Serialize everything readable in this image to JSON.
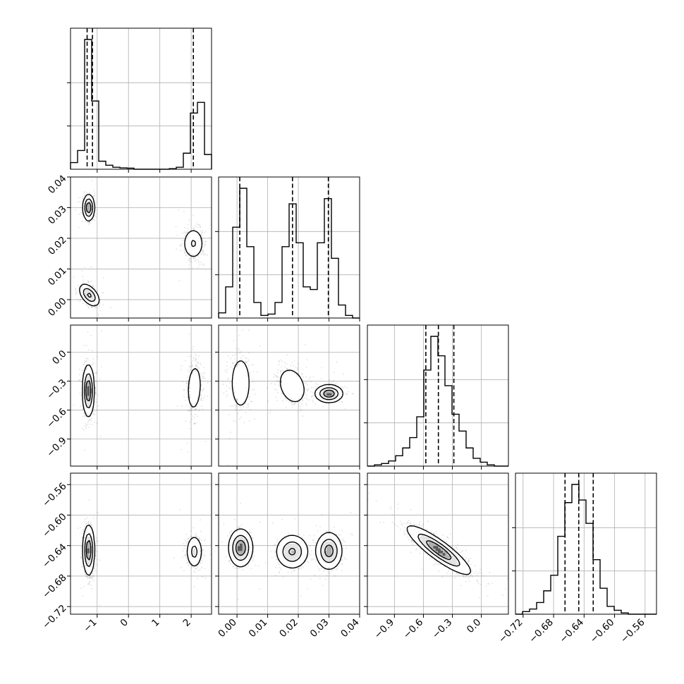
{
  "chart_data": {
    "type": "corner",
    "parameters": [
      {
        "range": [
          -1.85,
          2.65
        ],
        "ticks": [
          -1,
          0,
          1,
          2
        ],
        "tick_labels": [
          "−1",
          "0",
          "1",
          "2"
        ],
        "quantiles": [
          -1.32,
          -1.15,
          2.07
        ],
        "histogram": {
          "edges": [
            -1.85,
            -1.625,
            -1.4,
            -1.175,
            -0.95,
            -0.725,
            -0.5,
            -0.275,
            -0.05,
            0.175,
            0.4,
            0.625,
            0.85,
            1.075,
            1.3,
            1.525,
            1.75,
            1.975,
            2.2,
            2.425,
            2.65
          ],
          "counts": [
            0.05,
            0.14,
            0.97,
            0.51,
            0.06,
            0.03,
            0.015,
            0.01,
            0.008,
            0.0,
            0.0,
            0.0,
            0.0,
            0.0,
            0.004,
            0.015,
            0.12,
            0.42,
            0.5,
            0.11
          ]
        }
      },
      {
        "range": [
          -0.006,
          0.04
        ],
        "ticks": [
          0.0,
          0.01,
          0.02,
          0.03,
          0.04
        ],
        "tick_labels": [
          "0.00",
          "0.01",
          "0.02",
          "0.03",
          "0.04"
        ],
        "quantiles": [
          0.0009,
          0.0181,
          0.0298
        ],
        "histogram": {
          "edges": [
            -0.006,
            -0.0037,
            -0.0014,
            0.0009,
            0.0032,
            0.0055,
            0.0078,
            0.0101,
            0.0124,
            0.0147,
            0.017,
            0.0193,
            0.0216,
            0.0239,
            0.0262,
            0.0285,
            0.0308,
            0.0331,
            0.0354,
            0.0377,
            0.04
          ],
          "counts": [
            0.04,
            0.24,
            0.7,
            1.0,
            0.55,
            0.12,
            0.02,
            0.03,
            0.12,
            0.55,
            0.88,
            0.58,
            0.24,
            0.22,
            0.58,
            0.92,
            0.46,
            0.1,
            0.02,
            0.0
          ]
        }
      },
      {
        "range": [
          -1.18,
          0.28
        ],
        "ticks": [
          -0.9,
          -0.6,
          -0.3,
          0.0
        ],
        "tick_labels": [
          "−0.9",
          "−0.6",
          "−0.3",
          "0.0"
        ],
        "quantiles": [
          -0.575,
          -0.445,
          -0.285
        ],
        "histogram": {
          "edges": [
            -1.18,
            -1.107,
            -1.034,
            -0.961,
            -0.888,
            -0.815,
            -0.742,
            -0.669,
            -0.596,
            -0.523,
            -0.45,
            -0.377,
            -0.304,
            -0.231,
            -0.158,
            -0.085,
            -0.012,
            0.061,
            0.134,
            0.207,
            0.28
          ],
          "counts": [
            0.0,
            0.01,
            0.02,
            0.04,
            0.08,
            0.14,
            0.22,
            0.38,
            0.74,
            1.0,
            0.85,
            0.62,
            0.4,
            0.27,
            0.14,
            0.06,
            0.03,
            0.01,
            0.0,
            0.0
          ]
        }
      },
      {
        "range": [
          -0.73,
          -0.545
        ],
        "ticks": [
          -0.72,
          -0.68,
          -0.64,
          -0.6,
          -0.56
        ],
        "tick_labels": [
          "−0.72",
          "−0.68",
          "−0.64",
          "−0.60",
          "−0.56"
        ],
        "quantiles": [
          -0.665,
          -0.647,
          -0.628
        ],
        "histogram": {
          "edges": [
            -0.73,
            -0.72075,
            -0.7115,
            -0.70225,
            -0.693,
            -0.68375,
            -0.6745,
            -0.66525,
            -0.656,
            -0.64675,
            -0.6375,
            -0.62825,
            -0.619,
            -0.60975,
            -0.6005,
            -0.59125,
            -0.582,
            -0.57275,
            -0.5635,
            -0.55425,
            -0.545
          ],
          "counts": [
            0.0,
            0.02,
            0.04,
            0.09,
            0.18,
            0.3,
            0.6,
            0.86,
            1.0,
            0.88,
            0.7,
            0.42,
            0.2,
            0.06,
            0.03,
            0.01,
            0.0,
            0.0,
            0.0,
            0.0
          ]
        }
      }
    ],
    "panels_2d": [
      {
        "x_param": 0,
        "y_param": 1,
        "clusters": [
          {
            "center": [
              -1.27,
              0.03
            ],
            "sd": [
              0.09,
              0.0021
            ],
            "rho": 0.0,
            "weight": 0.33
          },
          {
            "center": [
              -1.25,
              0.0015
            ],
            "sd": [
              0.16,
              0.0018
            ],
            "rho": -0.5,
            "weight": 0.34
          },
          {
            "center": [
              2.07,
              0.0183
            ],
            "sd": [
              0.17,
              0.0026
            ],
            "rho": 0.0,
            "weight": 0.33
          }
        ]
      },
      {
        "x_param": 0,
        "y_param": 2,
        "clusters": [
          {
            "center": [
              -1.28,
              -0.4
            ],
            "sd": [
              0.09,
              0.13
            ],
            "rho": 0.0,
            "weight": 0.67
          },
          {
            "center": [
              2.1,
              -0.37
            ],
            "sd": [
              0.14,
              0.15
            ],
            "rho": 0.15,
            "weight": 0.33
          }
        ]
      },
      {
        "x_param": 1,
        "y_param": 2,
        "clusters": [
          {
            "center": [
              0.0012,
              -0.32
            ],
            "sd": [
              0.0019,
              0.16
            ],
            "rho": 0.0,
            "weight": 0.34
          },
          {
            "center": [
              0.018,
              -0.35
            ],
            "sd": [
              0.0026,
              0.11
            ],
            "rho": -0.25,
            "weight": 0.33
          },
          {
            "center": [
              0.03,
              -0.43
            ],
            "sd": [
              0.0022,
              0.045
            ],
            "rho": 0.0,
            "weight": 0.33
          }
        ]
      },
      {
        "x_param": 0,
        "y_param": 3,
        "clusters": [
          {
            "center": [
              -1.27,
              -0.646
            ],
            "sd": [
              0.09,
              0.016
            ],
            "rho": 0.0,
            "weight": 0.67
          },
          {
            "center": [
              2.1,
              -0.648
            ],
            "sd": [
              0.13,
              0.011
            ],
            "rho": 0.0,
            "weight": 0.33
          }
        ]
      },
      {
        "x_param": 1,
        "y_param": 3,
        "clusters": [
          {
            "center": [
              0.0012,
              -0.643
            ],
            "sd": [
              0.0019,
              0.012
            ],
            "rho": 0.0,
            "weight": 0.34
          },
          {
            "center": [
              0.018,
              -0.648
            ],
            "sd": [
              0.0026,
              0.011
            ],
            "rho": 0.0,
            "weight": 0.33
          },
          {
            "center": [
              0.03,
              -0.647
            ],
            "sd": [
              0.0021,
              0.012
            ],
            "rho": 0.0,
            "weight": 0.33
          }
        ]
      },
      {
        "x_param": 2,
        "y_param": 3,
        "clusters": [
          {
            "center": [
              -0.44,
              -0.646
            ],
            "sd": [
              0.16,
              0.0155
            ],
            "rho": -0.88,
            "weight": 1.0
          }
        ]
      }
    ],
    "grid": true,
    "xlabel": "",
    "ylabel": "",
    "title": ""
  }
}
